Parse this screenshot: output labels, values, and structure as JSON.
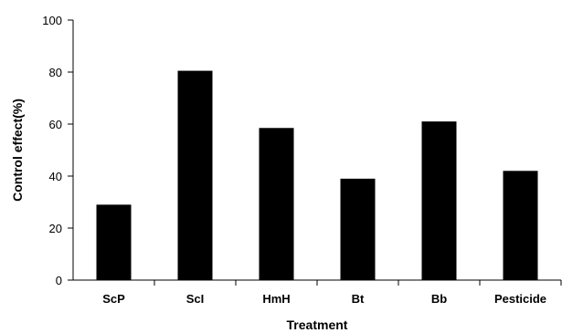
{
  "chart_data": {
    "type": "bar",
    "categories": [
      "ScP",
      "ScI",
      "HmH",
      "Bt",
      "Bb",
      "Pesticide"
    ],
    "values": [
      29,
      80.5,
      58.5,
      39,
      61,
      42
    ],
    "xlabel": "Treatment",
    "ylabel": "Control effect(%)",
    "ylim": [
      0,
      100
    ],
    "yticks": [
      0,
      20,
      40,
      60,
      80,
      100
    ],
    "grid": false,
    "bar_color": "#000000"
  }
}
